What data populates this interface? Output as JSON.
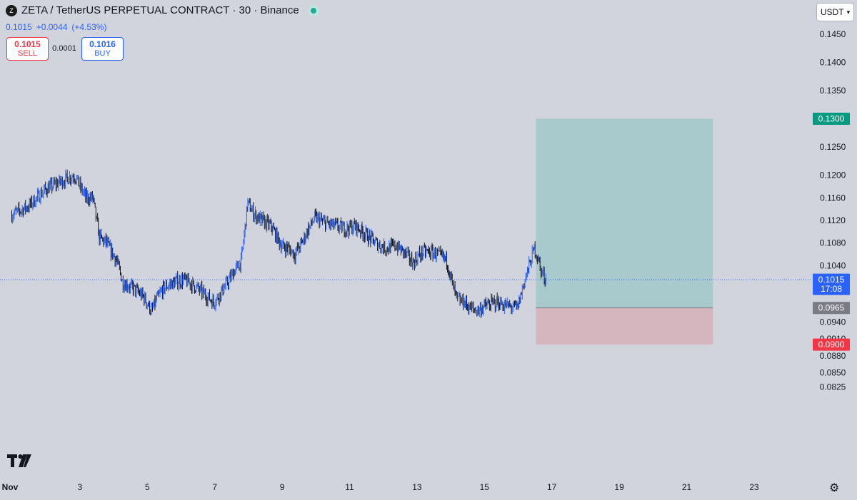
{
  "header": {
    "logo_text": "Z",
    "title": "ZETA / TetherUS PERPETUAL CONTRACT · 30 · Binance",
    "last_price": "0.1015",
    "change": "+0.0044",
    "change_pct": "(+4.53%)"
  },
  "trade": {
    "sell_price": "0.1015",
    "sell_label": "SELL",
    "spread": "0.0001",
    "buy_price": "0.1016",
    "buy_label": "BUY"
  },
  "currency": {
    "label": "USDT"
  },
  "icons": {
    "settings": "gear-icon",
    "brand": "tradingview-logo",
    "status": "market-open-dot"
  },
  "colors": {
    "background": "#d1d4dc",
    "candle_up": "#2962ff",
    "candle_down": "#131722",
    "profit_zone": "#a9cacc",
    "loss_zone": "#d5b6bf",
    "target_label": "#089981",
    "stop_label": "#f23645",
    "entry_label": "#787b86",
    "current_label": "#2962ff"
  },
  "chart_data": {
    "type": "line",
    "symbol": "ZETA / TetherUS PERPETUAL CONTRACT",
    "interval": "30",
    "exchange": "Binance",
    "x_tick_labels": [
      "Nov",
      "3",
      "5",
      "7",
      "9",
      "11",
      "13",
      "15",
      "17",
      "19",
      "21",
      "23"
    ],
    "y_tick_labels": [
      "0.1450",
      "0.1400",
      "0.1350",
      "0.1250",
      "0.1200",
      "0.1160",
      "0.1120",
      "0.1080",
      "0.1040",
      "0.0940",
      "0.0910",
      "0.0880",
      "0.0850",
      "0.0825"
    ],
    "ylim": [
      0.081,
      0.148
    ],
    "x_range_days": [
      1,
      24
    ],
    "series": [
      {
        "x": [
          1.0,
          1.5,
          2.0,
          2.5,
          2.85,
          3.2,
          3.4,
          3.6,
          3.8,
          4.1,
          4.3,
          4.6,
          4.9,
          5.15,
          5.3,
          5.5,
          5.8,
          6.1,
          6.4,
          6.7,
          7.0,
          7.3,
          7.6,
          7.8,
          8.0,
          8.2,
          8.4,
          8.7,
          9.0,
          9.2,
          9.4,
          9.6,
          9.8,
          10.0,
          10.3,
          10.6,
          10.9,
          11.2,
          11.5,
          11.8,
          12.1,
          12.4,
          12.7,
          12.9,
          13.1,
          13.3,
          13.6,
          13.9,
          14.1,
          14.2,
          14.4,
          14.6,
          14.8,
          15.1,
          15.4,
          15.7,
          16.0,
          16.2,
          16.5,
          16.6,
          16.7,
          16.85
        ],
        "close": [
          0.113,
          0.1145,
          0.1175,
          0.119,
          0.12,
          0.116,
          0.116,
          0.109,
          0.108,
          0.105,
          0.101,
          0.1,
          0.0985,
          0.096,
          0.098,
          0.1,
          0.101,
          0.1015,
          0.1005,
          0.099,
          0.0975,
          0.1,
          0.103,
          0.1045,
          0.115,
          0.113,
          0.112,
          0.111,
          0.1075,
          0.107,
          0.106,
          0.108,
          0.1105,
          0.1125,
          0.1115,
          0.111,
          0.1105,
          0.111,
          0.1095,
          0.108,
          0.107,
          0.1075,
          0.106,
          0.1045,
          0.106,
          0.1065,
          0.106,
          0.105,
          0.1,
          0.098,
          0.0975,
          0.0965,
          0.096,
          0.097,
          0.0975,
          0.0968,
          0.0965,
          0.101,
          0.107,
          0.1055,
          0.103,
          0.1015
        ]
      }
    ],
    "position": {
      "type": "long",
      "entry": "0.0965",
      "target": "0.1300",
      "stop": "0.0900",
      "start_day": 16.55,
      "end_day": 21.8
    },
    "current": {
      "price": "0.1015",
      "countdown": "17:08"
    },
    "grid": false
  }
}
